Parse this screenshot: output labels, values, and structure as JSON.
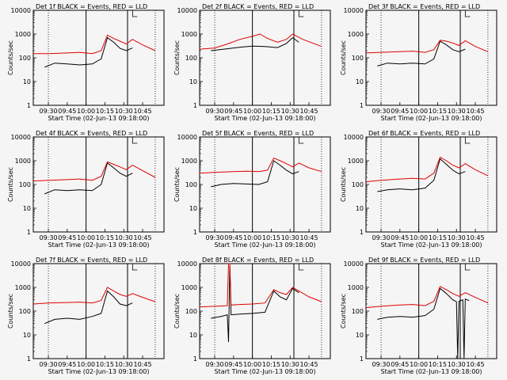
{
  "figure": {
    "ylabel": "Counts/sec",
    "xlabel": "Start Time (02-Jun-13 09:18:00)"
  },
  "colors": {
    "events": "#000000",
    "lld": "#e00000",
    "axes": "#000000",
    "background": "#f5f5f5"
  },
  "chart_data": [
    {
      "type": "line",
      "title": "Det 1f BLACK = Events, RED = LLD",
      "xlabel": "Start Time (02-Jun-13 09:18:00)",
      "ylabel": "Counts/sec",
      "xlim": [
        "09:18",
        "11:02"
      ],
      "ylim": [
        1,
        10000
      ],
      "yscale": "log",
      "xticks": [
        "09:30",
        "09:45",
        "10:00",
        "10:15",
        "10:30",
        "10:45"
      ],
      "yticks": [
        "1",
        "10",
        "100",
        "1000",
        "10000"
      ],
      "series": [
        {
          "name": "Events",
          "color": "#000000",
          "x": [
            "09:27",
            "09:35",
            "09:45",
            "09:55",
            "10:05",
            "10:12",
            "10:17",
            "10:22",
            "10:27",
            "10:32",
            "10:37"
          ],
          "y": [
            40,
            60,
            55,
            50,
            55,
            90,
            700,
            450,
            250,
            200,
            260
          ]
        },
        {
          "name": "LLD",
          "color": "#e00000",
          "x": [
            "09:18",
            "09:30",
            "09:45",
            "09:55",
            "10:05",
            "10:12",
            "10:17",
            "10:22",
            "10:27",
            "10:32",
            "10:37",
            "10:45",
            "10:55"
          ],
          "y": [
            150,
            150,
            160,
            170,
            150,
            200,
            900,
            650,
            500,
            380,
            600,
            350,
            200
          ]
        }
      ]
    },
    {
      "type": "line",
      "title": "Det 2f BLACK = Events, RED = LLD",
      "xlabel": "Start Time (02-Jun-13 09:18:00)",
      "ylabel": "Counts/sec",
      "xlim": [
        "09:18",
        "11:02"
      ],
      "ylim": [
        1,
        10000
      ],
      "yscale": "log",
      "xticks": [
        "09:30",
        "09:45",
        "10:00",
        "10:15",
        "10:30",
        "10:45"
      ],
      "yticks": [
        "1",
        "10",
        "100",
        "1000",
        "10000"
      ],
      "series": [
        {
          "name": "Events",
          "color": "#000000",
          "x": [
            "09:27",
            "09:40",
            "09:50",
            "10:00",
            "10:10",
            "10:20",
            "10:27",
            "10:32",
            "10:37"
          ],
          "y": [
            200,
            240,
            280,
            310,
            300,
            270,
            400,
            700,
            450
          ]
        },
        {
          "name": "LLD",
          "color": "#e00000",
          "x": [
            "09:18",
            "09:30",
            "09:40",
            "09:50",
            "10:00",
            "10:06",
            "10:12",
            "10:20",
            "10:27",
            "10:32",
            "10:40",
            "10:55"
          ],
          "y": [
            230,
            260,
            380,
            600,
            800,
            1000,
            650,
            450,
            600,
            1000,
            600,
            300
          ]
        }
      ]
    },
    {
      "type": "line",
      "title": "Det 3f BLACK = Events, RED = LLD",
      "xlabel": "Start Time (02-Jun-13 09:18:00)",
      "ylabel": "Counts/sec",
      "xlim": [
        "09:18",
        "11:02"
      ],
      "ylim": [
        1,
        10000
      ],
      "yscale": "log",
      "xticks": [
        "09:30",
        "09:45",
        "10:00",
        "10:15",
        "10:30",
        "10:45"
      ],
      "yticks": [
        "1",
        "10",
        "100",
        "1000",
        "10000"
      ],
      "series": [
        {
          "name": "Events",
          "color": "#000000",
          "x": [
            "09:27",
            "09:35",
            "09:45",
            "09:55",
            "10:05",
            "10:12",
            "10:17",
            "10:22",
            "10:27",
            "10:32",
            "10:37"
          ],
          "y": [
            45,
            60,
            55,
            60,
            55,
            90,
            500,
            350,
            220,
            180,
            230
          ]
        },
        {
          "name": "LLD",
          "color": "#e00000",
          "x": [
            "09:18",
            "09:30",
            "09:45",
            "09:55",
            "10:05",
            "10:12",
            "10:17",
            "10:22",
            "10:27",
            "10:32",
            "10:37",
            "10:45",
            "10:55"
          ],
          "y": [
            160,
            170,
            180,
            190,
            170,
            220,
            550,
            500,
            420,
            330,
            520,
            300,
            180
          ]
        }
      ]
    },
    {
      "type": "line",
      "title": "Det 4f BLACK = Events, RED = LLD",
      "xlabel": "Start Time (02-Jun-13 09:18:00)",
      "ylabel": "Counts/sec",
      "xlim": [
        "09:18",
        "11:02"
      ],
      "ylim": [
        1,
        10000
      ],
      "yscale": "log",
      "xticks": [
        "09:30",
        "09:45",
        "10:00",
        "10:15",
        "10:30",
        "10:45"
      ],
      "yticks": [
        "1",
        "10",
        "100",
        "1000",
        "10000"
      ],
      "series": [
        {
          "name": "Events",
          "color": "#000000",
          "x": [
            "09:27",
            "09:35",
            "09:45",
            "09:55",
            "10:05",
            "10:12",
            "10:17",
            "10:22",
            "10:27",
            "10:32",
            "10:37"
          ],
          "y": [
            40,
            60,
            55,
            60,
            55,
            100,
            800,
            500,
            300,
            220,
            300
          ]
        },
        {
          "name": "LLD",
          "color": "#e00000",
          "x": [
            "09:18",
            "09:30",
            "09:45",
            "09:55",
            "10:05",
            "10:12",
            "10:17",
            "10:22",
            "10:27",
            "10:32",
            "10:37",
            "10:45",
            "10:55"
          ],
          "y": [
            140,
            150,
            160,
            170,
            150,
            220,
            900,
            700,
            550,
            420,
            650,
            380,
            200
          ]
        }
      ]
    },
    {
      "type": "line",
      "title": "Det 5f BLACK = Events, RED = LLD",
      "xlabel": "Start Time (02-Jun-13 09:18:00)",
      "ylabel": "Counts/sec",
      "xlim": [
        "09:18",
        "11:02"
      ],
      "ylim": [
        1,
        10000
      ],
      "yscale": "log",
      "xticks": [
        "09:30",
        "09:45",
        "10:00",
        "10:15",
        "10:30",
        "10:45"
      ],
      "yticks": [
        "1",
        "10",
        "100",
        "1000",
        "10000"
      ],
      "series": [
        {
          "name": "Events",
          "color": "#000000",
          "x": [
            "09:27",
            "09:35",
            "09:45",
            "09:55",
            "10:05",
            "10:12",
            "10:17",
            "10:22",
            "10:27",
            "10:32",
            "10:37"
          ],
          "y": [
            80,
            100,
            110,
            105,
            100,
            130,
            1000,
            650,
            400,
            280,
            350
          ]
        },
        {
          "name": "LLD",
          "color": "#e00000",
          "x": [
            "09:18",
            "09:30",
            "09:45",
            "09:55",
            "10:05",
            "10:12",
            "10:17",
            "10:22",
            "10:27",
            "10:32",
            "10:37",
            "10:45",
            "10:55"
          ],
          "y": [
            300,
            320,
            350,
            360,
            350,
            400,
            1300,
            1000,
            750,
            550,
            800,
            500,
            350
          ]
        }
      ]
    },
    {
      "type": "line",
      "title": "Det 6f BLACK = Events, RED = LLD",
      "xlabel": "Start Time (02-Jun-13 09:18:00)",
      "ylabel": "Counts/sec",
      "xlim": [
        "09:18",
        "11:02"
      ],
      "ylim": [
        1,
        10000
      ],
      "yscale": "log",
      "xticks": [
        "09:30",
        "09:45",
        "10:00",
        "10:15",
        "10:30",
        "10:45"
      ],
      "yticks": [
        "1",
        "10",
        "100",
        "1000",
        "10000"
      ],
      "series": [
        {
          "name": "Events",
          "color": "#000000",
          "x": [
            "09:27",
            "09:35",
            "09:45",
            "09:55",
            "10:05",
            "10:12",
            "10:17",
            "10:22",
            "10:27",
            "10:32",
            "10:37"
          ],
          "y": [
            50,
            60,
            65,
            60,
            70,
            150,
            1200,
            700,
            400,
            280,
            350
          ]
        },
        {
          "name": "LLD",
          "color": "#e00000",
          "x": [
            "09:18",
            "09:30",
            "09:45",
            "09:55",
            "10:05",
            "10:12",
            "10:17",
            "10:22",
            "10:27",
            "10:32",
            "10:37",
            "10:45",
            "10:55"
          ],
          "y": [
            130,
            150,
            170,
            180,
            170,
            300,
            1400,
            1000,
            650,
            500,
            750,
            420,
            230
          ]
        }
      ]
    },
    {
      "type": "line",
      "title": "Det 7f BLACK = Events, RED = LLD",
      "xlabel": "Start Time (02-Jun-13 09:18:00)",
      "ylabel": "Counts/sec",
      "xlim": [
        "09:18",
        "11:02"
      ],
      "ylim": [
        1,
        10000
      ],
      "yscale": "log",
      "xticks": [
        "09:30",
        "09:45",
        "10:00",
        "10:15",
        "10:30",
        "10:45"
      ],
      "yticks": [
        "1",
        "10",
        "100",
        "1000",
        "10000"
      ],
      "series": [
        {
          "name": "Events",
          "color": "#000000",
          "x": [
            "09:27",
            "09:35",
            "09:45",
            "09:55",
            "10:05",
            "10:12",
            "10:17",
            "10:22",
            "10:27",
            "10:32",
            "10:37"
          ],
          "y": [
            30,
            45,
            50,
            45,
            60,
            80,
            700,
            400,
            200,
            170,
            220
          ]
        },
        {
          "name": "LLD",
          "color": "#e00000",
          "x": [
            "09:18",
            "09:30",
            "09:45",
            "09:55",
            "10:05",
            "10:12",
            "10:17",
            "10:22",
            "10:27",
            "10:32",
            "10:37",
            "10:45",
            "10:55"
          ],
          "y": [
            200,
            220,
            230,
            240,
            220,
            280,
            1000,
            700,
            500,
            420,
            550,
            380,
            250
          ]
        }
      ]
    },
    {
      "type": "line",
      "title": "Det 8f BLACK = Events, RED = LLD",
      "xlabel": "Start Time (02-Jun-13 09:18:00)",
      "ylabel": "Counts/sec",
      "xlim": [
        "09:18",
        "11:02"
      ],
      "ylim": [
        1,
        10000
      ],
      "yscale": "log",
      "xticks": [
        "09:30",
        "09:45",
        "10:00",
        "10:15",
        "10:30",
        "10:45"
      ],
      "yticks": [
        "1",
        "10",
        "100",
        "1000",
        "10000"
      ],
      "series": [
        {
          "name": "Events",
          "color": "#000000",
          "x": [
            "09:27",
            "09:35",
            "09:40",
            "09:41",
            "09:42",
            "09:43",
            "09:50",
            "10:00",
            "10:10",
            "10:17",
            "10:22",
            "10:27",
            "10:32",
            "10:37"
          ],
          "y": [
            50,
            60,
            70,
            5,
            8000,
            70,
            75,
            80,
            90,
            700,
            400,
            300,
            900,
            600
          ]
        },
        {
          "name": "LLD",
          "color": "#e00000",
          "x": [
            "09:18",
            "09:30",
            "09:40",
            "09:41",
            "09:42",
            "09:43",
            "09:50",
            "10:00",
            "10:10",
            "10:17",
            "10:22",
            "10:27",
            "10:32",
            "10:37",
            "10:45",
            "10:55"
          ],
          "y": [
            150,
            160,
            170,
            10000,
            10000,
            180,
            190,
            200,
            220,
            800,
            600,
            500,
            1000,
            700,
            400,
            250
          ]
        }
      ]
    },
    {
      "type": "line",
      "title": "Det 9f BLACK = Events, RED = LLD",
      "xlabel": "Start Time (02-Jun-13 09:18:00)",
      "ylabel": "Counts/sec",
      "xlim": [
        "09:18",
        "11:02"
      ],
      "ylim": [
        1,
        10000
      ],
      "yscale": "log",
      "xticks": [
        "09:30",
        "09:45",
        "10:00",
        "10:15",
        "10:30",
        "10:45"
      ],
      "yticks": [
        "1",
        "10",
        "100",
        "1000",
        "10000"
      ],
      "series": [
        {
          "name": "Events",
          "color": "#000000",
          "x": [
            "09:27",
            "09:35",
            "09:45",
            "09:55",
            "10:05",
            "10:12",
            "10:17",
            "10:22",
            "10:27",
            "10:30",
            "10:31",
            "10:32",
            "10:35",
            "10:36",
            "10:37",
            "10:40"
          ],
          "y": [
            45,
            55,
            60,
            55,
            65,
            120,
            900,
            550,
            300,
            250,
            1,
            260,
            300,
            1,
            320,
            280
          ]
        },
        {
          "name": "LLD",
          "color": "#e00000",
          "x": [
            "09:18",
            "09:30",
            "09:45",
            "09:55",
            "10:05",
            "10:12",
            "10:17",
            "10:22",
            "10:27",
            "10:32",
            "10:37",
            "10:45",
            "10:55"
          ],
          "y": [
            140,
            160,
            180,
            190,
            170,
            260,
            1100,
            800,
            550,
            420,
            600,
            380,
            220
          ]
        }
      ]
    }
  ]
}
